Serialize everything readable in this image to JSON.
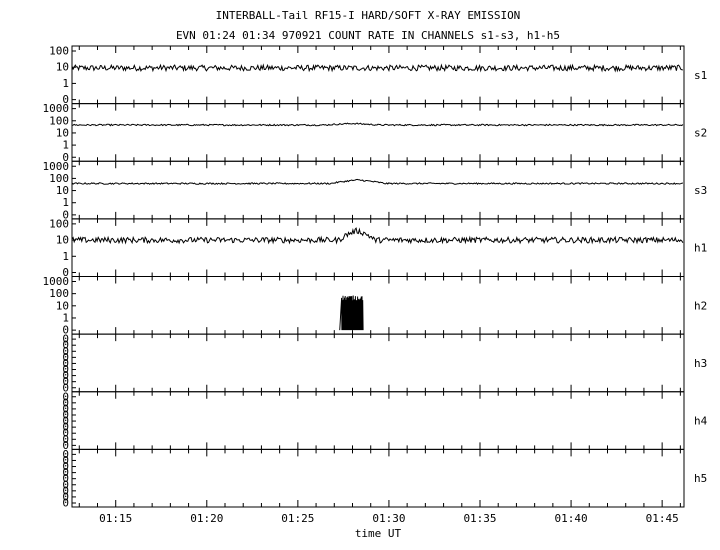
{
  "chart_data": {
    "type": "line",
    "title": "INTERBALL-Tail RF15-I HARD/SOFT X-RAY EMISSION",
    "subtitle": "EVN 01:24 01:34 970921  COUNT RATE IN CHANNELS s1-s3, h1-h5",
    "xlabel": "time UT",
    "x_ticks": [
      "01:15",
      "01:20",
      "01:25",
      "01:30",
      "01:35",
      "01:40",
      "01:45"
    ],
    "x_range_minutes": [
      72.6,
      106.2
    ],
    "y_scale": "log",
    "grid": false,
    "panels": [
      {
        "name": "s1",
        "y_ticks": [
          "100",
          "10",
          "1",
          "0"
        ],
        "baseline": 9,
        "events": [
          {
            "t_start": 77.0,
            "t_end": 78.0,
            "peak": 9.3
          }
        ]
      },
      {
        "name": "s2",
        "y_ticks": [
          "1000",
          "100",
          "10",
          "1",
          "0"
        ],
        "baseline": 45,
        "events": [
          {
            "t_start": 86.5,
            "t_end": 89.5,
            "peak": 60
          }
        ]
      },
      {
        "name": "s3",
        "y_ticks": [
          "1000",
          "100",
          "10",
          "1",
          "0"
        ],
        "baseline": 38,
        "events": [
          {
            "t_start": 86.8,
            "t_end": 89.8,
            "peak": 75
          }
        ]
      },
      {
        "name": "h1",
        "y_ticks": [
          "100",
          "10",
          "1",
          "0"
        ],
        "baseline": 10,
        "events": [
          {
            "t_start": 87.3,
            "t_end": 89.2,
            "peak": 38
          }
        ]
      },
      {
        "name": "h2",
        "y_ticks": [
          "1000",
          "100",
          "10",
          "1",
          "0"
        ],
        "baseline": 0,
        "events": [
          {
            "t_start": 87.4,
            "t_end": 88.6,
            "peak": 55
          }
        ]
      },
      {
        "name": "h3",
        "y_ticks": [
          "0",
          "0",
          "0",
          "0",
          "0",
          "0",
          "0",
          "0",
          "0"
        ],
        "baseline": 0,
        "events": []
      },
      {
        "name": "h4",
        "y_ticks": [
          "0",
          "0",
          "0",
          "0",
          "0",
          "0",
          "0",
          "0",
          "0"
        ],
        "baseline": 0,
        "events": []
      },
      {
        "name": "h5",
        "y_ticks": [
          "0",
          "0",
          "0",
          "0",
          "0",
          "0",
          "0",
          "0",
          "0"
        ],
        "baseline": 0,
        "events": []
      }
    ]
  }
}
